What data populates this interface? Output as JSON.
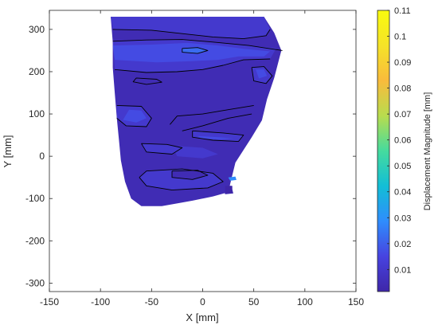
{
  "chart_data": {
    "type": "heatmap",
    "subtype": "filled-contour",
    "xlabel": "X [mm]",
    "ylabel": "Y [mm]",
    "colorbar_label": "Displacement Magnitude [mm]",
    "xlim": [
      -150,
      150
    ],
    "ylim": [
      -320,
      345
    ],
    "x_ticks": [
      -150,
      -100,
      -50,
      0,
      50,
      100,
      150
    ],
    "y_ticks": [
      -300,
      -200,
      -100,
      0,
      100,
      200,
      300
    ],
    "colorbar_range": [
      0.0015,
      0.11
    ],
    "colorbar_ticks": [
      0.01,
      0.02,
      0.03,
      0.04,
      0.05,
      0.06,
      0.07,
      0.08,
      0.09,
      0.1,
      0.11
    ],
    "colormap": "parula",
    "colormap_colors": [
      "#3E26A8",
      "#4743E0",
      "#2F8DFD",
      "#12BED6",
      "#45DB9E",
      "#B8DC4E",
      "#F9BB3C",
      "#F5E328",
      "#F9FB0E"
    ],
    "grid": false,
    "domain_outline": [
      [
        -90,
        330
      ],
      [
        -20,
        330
      ],
      [
        25,
        330
      ],
      [
        60,
        330
      ],
      [
        70,
        292
      ],
      [
        77,
        250
      ],
      [
        70,
        185
      ],
      [
        63,
        135
      ],
      [
        58,
        85
      ],
      [
        48,
        45
      ],
      [
        40,
        15
      ],
      [
        32,
        -15
      ],
      [
        28,
        -55
      ],
      [
        25,
        -85
      ],
      [
        10,
        -95
      ],
      [
        -10,
        -105
      ],
      [
        -40,
        -118
      ],
      [
        -60,
        -118
      ],
      [
        -70,
        -100
      ],
      [
        -76,
        -60
      ],
      [
        -80,
        -10
      ],
      [
        -82,
        40
      ],
      [
        -84,
        90
      ],
      [
        -86,
        150
      ],
      [
        -88,
        210
      ],
      [
        -88,
        270
      ]
    ],
    "field_regions": [
      {
        "level": 0.0045,
        "points": [
          [
            -90,
            330
          ],
          [
            60,
            330
          ],
          [
            70,
            292
          ],
          [
            77,
            250
          ],
          [
            70,
            185
          ],
          [
            63,
            135
          ],
          [
            58,
            85
          ],
          [
            48,
            45
          ],
          [
            40,
            15
          ],
          [
            32,
            -15
          ],
          [
            28,
            -55
          ],
          [
            25,
            -85
          ],
          [
            10,
            -95
          ],
          [
            -10,
            -105
          ],
          [
            -40,
            -118
          ],
          [
            -60,
            -118
          ],
          [
            -70,
            -100
          ],
          [
            -76,
            -60
          ],
          [
            -80,
            -10
          ],
          [
            -82,
            40
          ],
          [
            -84,
            90
          ],
          [
            -86,
            150
          ],
          [
            -88,
            210
          ],
          [
            -88,
            270
          ]
        ]
      },
      {
        "level": 0.0105,
        "points": [
          [
            -90,
            330
          ],
          [
            60,
            330
          ],
          [
            66,
            300
          ],
          [
            62,
            285
          ],
          [
            40,
            278
          ],
          [
            10,
            282
          ],
          [
            -20,
            290
          ],
          [
            -50,
            298
          ],
          [
            -88,
            300
          ]
        ]
      },
      {
        "level": 0.0105,
        "points": [
          [
            -88,
            272
          ],
          [
            -55,
            275
          ],
          [
            -20,
            276
          ],
          [
            10,
            270
          ],
          [
            45,
            262
          ],
          [
            72,
            255
          ],
          [
            66,
            230
          ],
          [
            40,
            228
          ],
          [
            20,
            215
          ],
          [
            0,
            205
          ],
          [
            -25,
            200
          ],
          [
            -55,
            198
          ],
          [
            -86,
            205
          ]
        ]
      },
      {
        "level": 0.0105,
        "points": [
          [
            -84,
            120
          ],
          [
            -60,
            118
          ],
          [
            -50,
            90
          ],
          [
            -55,
            70
          ],
          [
            -75,
            72
          ],
          [
            -84,
            90
          ]
        ]
      },
      {
        "level": 0.0105,
        "points": [
          [
            -60,
            30
          ],
          [
            -35,
            28
          ],
          [
            -20,
            20
          ],
          [
            -30,
            5
          ],
          [
            -55,
            10
          ]
        ]
      },
      {
        "level": 0.0105,
        "points": [
          [
            -10,
            60
          ],
          [
            20,
            55
          ],
          [
            40,
            50
          ],
          [
            35,
            35
          ],
          [
            10,
            38
          ],
          [
            -10,
            45
          ]
        ]
      },
      {
        "level": 0.0105,
        "points": [
          [
            -55,
            -35
          ],
          [
            -20,
            -30
          ],
          [
            10,
            -40
          ],
          [
            20,
            -60
          ],
          [
            5,
            -75
          ],
          [
            -30,
            -80
          ],
          [
            -55,
            -70
          ],
          [
            -62,
            -50
          ]
        ]
      },
      {
        "level": 0.0105,
        "points": [
          [
            -30,
            25
          ],
          [
            0,
            20
          ],
          [
            15,
            5
          ],
          [
            0,
            -5
          ],
          [
            -25,
            0
          ]
        ]
      },
      {
        "level": 0.0105,
        "points": [
          [
            48,
            210
          ],
          [
            60,
            212
          ],
          [
            68,
            190
          ],
          [
            62,
            172
          ],
          [
            50,
            178
          ]
        ]
      },
      {
        "level": 0.0165,
        "points": [
          [
            -88,
            262
          ],
          [
            -50,
            264
          ],
          [
            -15,
            268
          ],
          [
            15,
            262
          ],
          [
            40,
            254
          ],
          [
            66,
            248
          ],
          [
            60,
            236
          ],
          [
            35,
            236
          ],
          [
            15,
            228
          ],
          [
            -10,
            225
          ],
          [
            -45,
            222
          ],
          [
            -86,
            228
          ]
        ]
      },
      {
        "level": 0.0165,
        "points": [
          [
            -72,
            110
          ],
          [
            -60,
            108
          ],
          [
            -55,
            90
          ],
          [
            -65,
            80
          ],
          [
            -78,
            86
          ]
        ]
      },
      {
        "level": 0.0165,
        "points": [
          [
            52,
            205
          ],
          [
            60,
            205
          ],
          [
            63,
            190
          ],
          [
            55,
            184
          ]
        ]
      },
      {
        "level": 0.0165,
        "points": [
          [
            -5,
            48
          ],
          [
            15,
            45
          ],
          [
            30,
            42
          ],
          [
            15,
            40
          ],
          [
            -2,
            43
          ]
        ]
      },
      {
        "level": 0.0225,
        "points": [
          [
            -20,
            255
          ],
          [
            -5,
            257
          ],
          [
            5,
            250
          ],
          [
            -5,
            243
          ],
          [
            -20,
            246
          ]
        ]
      },
      {
        "level": 0.0045,
        "points": [
          [
            -65,
            185
          ],
          [
            -45,
            182
          ],
          [
            -40,
            175
          ],
          [
            -55,
            170
          ],
          [
            -68,
            176
          ]
        ]
      },
      {
        "level": 0.0045,
        "points": [
          [
            -25,
            95
          ],
          [
            0,
            100
          ],
          [
            25,
            110
          ],
          [
            50,
            120
          ],
          [
            48,
            100
          ],
          [
            25,
            90
          ],
          [
            0,
            72
          ],
          [
            -20,
            60
          ],
          [
            -32,
            75
          ]
        ]
      },
      {
        "level": 0.0045,
        "points": [
          [
            -30,
            -35
          ],
          [
            -5,
            -33
          ],
          [
            5,
            -45
          ],
          [
            -10,
            -55
          ],
          [
            -30,
            -50
          ]
        ]
      },
      {
        "level": 0.0045,
        "points": [
          [
            20,
            -72
          ],
          [
            28,
            -70
          ],
          [
            30,
            -88
          ],
          [
            22,
            -90
          ]
        ]
      },
      {
        "level": 0.0285,
        "points": [
          [
            25,
            -50
          ],
          [
            32,
            -48
          ],
          [
            33,
            -56
          ],
          [
            27,
            -58
          ]
        ]
      },
      {
        "level": 0.0015,
        "points": [
          [
            22,
            -70
          ],
          [
            29,
            -70
          ],
          [
            29,
            -88
          ],
          [
            22,
            -88
          ]
        ]
      }
    ],
    "contour_lines": [
      [
        [
          -88,
          300
        ],
        [
          -50,
          298
        ],
        [
          -20,
          290
        ],
        [
          10,
          282
        ],
        [
          40,
          278
        ],
        [
          62,
          285
        ],
        [
          66,
          300
        ]
      ],
      [
        [
          -88,
          272
        ],
        [
          -55,
          275
        ],
        [
          -20,
          276
        ],
        [
          10,
          270
        ],
        [
          45,
          262
        ],
        [
          78,
          250
        ]
      ],
      [
        [
          -86,
          205
        ],
        [
          -55,
          198
        ],
        [
          -25,
          200
        ],
        [
          0,
          205
        ],
        [
          20,
          215
        ],
        [
          40,
          228
        ],
        [
          66,
          230
        ]
      ],
      [
        [
          -20,
          255
        ],
        [
          -5,
          257
        ],
        [
          5,
          250
        ],
        [
          -5,
          243
        ],
        [
          -20,
          246
        ],
        [
          -20,
          255
        ]
      ],
      [
        [
          -65,
          185
        ],
        [
          -45,
          182
        ],
        [
          -40,
          175
        ],
        [
          -55,
          170
        ],
        [
          -68,
          176
        ],
        [
          -65,
          185
        ]
      ],
      [
        [
          -84,
          120
        ],
        [
          -60,
          118
        ],
        [
          -50,
          90
        ],
        [
          -55,
          70
        ],
        [
          -75,
          72
        ],
        [
          -84,
          90
        ]
      ],
      [
        [
          -32,
          75
        ],
        [
          -25,
          95
        ],
        [
          0,
          100
        ],
        [
          25,
          110
        ],
        [
          50,
          120
        ]
      ],
      [
        [
          -20,
          60
        ],
        [
          0,
          72
        ],
        [
          25,
          90
        ],
        [
          48,
          100
        ]
      ],
      [
        [
          48,
          210
        ],
        [
          60,
          212
        ],
        [
          68,
          190
        ],
        [
          62,
          172
        ],
        [
          50,
          178
        ],
        [
          48,
          210
        ]
      ],
      [
        [
          -60,
          30
        ],
        [
          -35,
          28
        ],
        [
          -20,
          20
        ],
        [
          -30,
          5
        ],
        [
          -55,
          10
        ],
        [
          -60,
          30
        ]
      ],
      [
        [
          -10,
          60
        ],
        [
          20,
          55
        ],
        [
          40,
          50
        ],
        [
          35,
          35
        ],
        [
          10,
          38
        ],
        [
          -10,
          45
        ],
        [
          -10,
          60
        ]
      ],
      [
        [
          -62,
          -50
        ],
        [
          -55,
          -35
        ],
        [
          -20,
          -30
        ],
        [
          10,
          -40
        ],
        [
          20,
          -60
        ],
        [
          5,
          -75
        ],
        [
          -30,
          -80
        ],
        [
          -55,
          -70
        ],
        [
          -62,
          -50
        ]
      ],
      [
        [
          -30,
          -35
        ],
        [
          -5,
          -33
        ],
        [
          5,
          -45
        ],
        [
          -10,
          -55
        ],
        [
          -30,
          -50
        ],
        [
          -30,
          -35
        ]
      ]
    ]
  }
}
